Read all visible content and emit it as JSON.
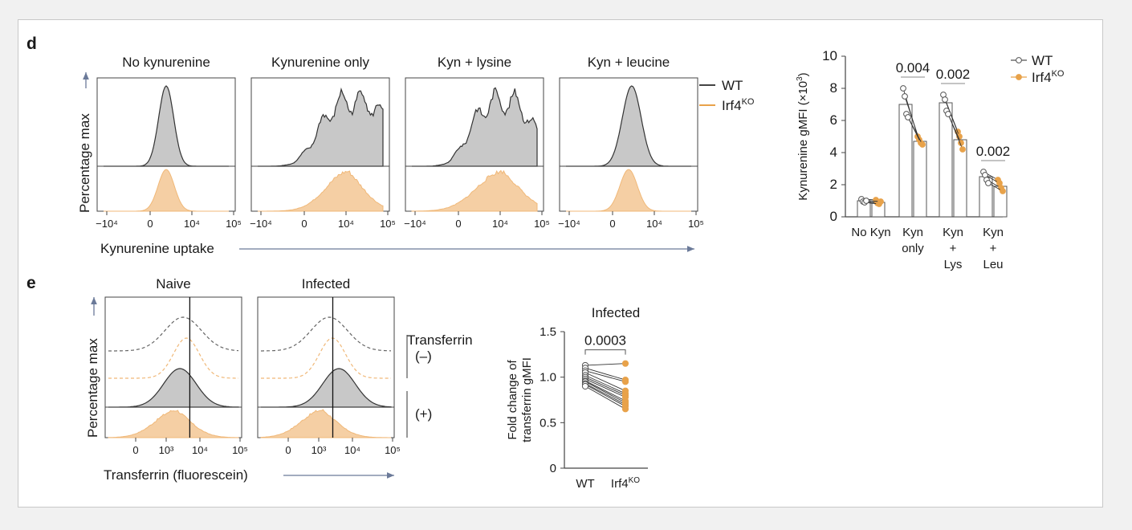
{
  "colors": {
    "wt": "#555555",
    "ko": "#e8a24a",
    "wt_fill": "#c8c8c8",
    "ko_fill": "#f5cfa4",
    "axis": "#6b7a99"
  },
  "panel_d": {
    "label": "d",
    "y_axis_label": "Percentage max",
    "x_axis_label": "Kynurenine uptake",
    "tick_labels": [
      "−10⁴",
      "0",
      "10⁴",
      "10⁵"
    ],
    "legend": {
      "wt": "WT",
      "ko_base": "Irf4",
      "ko_sup": "KO"
    },
    "histograms": [
      {
        "title": "No kynurenine",
        "wt": {
          "center": 0.0,
          "width": 0.12,
          "shape": "narrow"
        },
        "ko": {
          "center": 0.0,
          "width": 0.13,
          "shape": "narrow"
        }
      },
      {
        "title": "Kynurenine only",
        "wt": {
          "center": 0.55,
          "width": 0.55,
          "shape": "broad"
        },
        "ko": {
          "center": 0.45,
          "width": 0.35,
          "shape": "skew"
        }
      },
      {
        "title": "Kyn + lysine",
        "wt": {
          "center": 0.45,
          "width": 0.5,
          "shape": "broad"
        },
        "ko": {
          "center": 0.45,
          "width": 0.4,
          "shape": "skew"
        }
      },
      {
        "title": "Kyn + leucine",
        "wt": {
          "center": 0.05,
          "width": 0.15,
          "shape": "narrow"
        },
        "ko": {
          "center": 0.0,
          "width": 0.14,
          "shape": "narrow"
        }
      }
    ]
  },
  "chart_data": [
    {
      "type": "bar",
      "ylabel_base": "Kynurenine gMFI (×10",
      "ylabel_sup": "3",
      "ylabel_tail": ")",
      "ylim": [
        0,
        10
      ],
      "yticks": [
        0,
        2,
        4,
        6,
        8,
        10
      ],
      "groups": [
        {
          "label_lines": [
            "No Kyn"
          ],
          "wt": 1.0,
          "ko": 0.9,
          "wt_pts": [
            1.1,
            0.95,
            0.9,
            1.0
          ],
          "ko_pts": [
            1.05,
            0.85,
            0.8,
            0.95
          ],
          "p": ""
        },
        {
          "label_lines": [
            "Kyn",
            "only"
          ],
          "wt": 7.0,
          "ko": 4.7,
          "wt_pts": [
            8.0,
            7.5,
            6.4,
            6.2
          ],
          "ko_pts": [
            5.0,
            4.8,
            4.6,
            4.5
          ],
          "p": "0.004"
        },
        {
          "label_lines": [
            "Kyn",
            "+",
            "Lys"
          ],
          "wt": 7.1,
          "ko": 4.8,
          "wt_pts": [
            7.6,
            7.3,
            6.6,
            6.4
          ],
          "ko_pts": [
            5.3,
            5.0,
            4.6,
            4.2
          ],
          "p": "0.002"
        },
        {
          "label_lines": [
            "Kyn",
            "+",
            "Leu"
          ],
          "wt": 2.5,
          "ko": 1.9,
          "wt_pts": [
            2.8,
            2.6,
            2.3,
            2.1
          ],
          "ko_pts": [
            2.3,
            2.1,
            1.8,
            1.6
          ],
          "p": "0.002"
        }
      ],
      "legend": {
        "wt": "WT",
        "ko_base": "Irf4",
        "ko_sup": "KO"
      }
    },
    {
      "type": "scatter",
      "title": "Infected",
      "ylabel_lines": [
        "Fold change of",
        "transferrin gMFI"
      ],
      "ylim": [
        0,
        1.5
      ],
      "yticks": [
        0,
        0.5,
        1.0,
        1.5
      ],
      "ytick_labels": [
        "0",
        "0.5",
        "1.0",
        "1.5"
      ],
      "categories": [
        "WT",
        "Irf4"
      ],
      "ko_sup": "KO",
      "p": "0.0003",
      "wt_values": [
        1.13,
        1.1,
        1.07,
        1.05,
        1.02,
        1.0,
        0.98,
        0.96,
        0.95,
        0.93,
        0.92,
        0.9
      ],
      "ko_values": [
        1.15,
        0.97,
        0.95,
        0.85,
        0.82,
        0.8,
        0.78,
        0.74,
        0.72,
        0.7,
        0.68,
        0.65
      ]
    }
  ],
  "panel_e": {
    "label": "e",
    "y_axis_label": "Percentage max",
    "x_axis_label": "Transferrin (fluorescein)",
    "tick_labels": [
      "0",
      "10³",
      "10⁴",
      "10⁵"
    ],
    "bracket_title": "Transferrin",
    "minus_label": "(–)",
    "plus_label": "(+)",
    "histograms": [
      {
        "title": "Naive",
        "vline": 0.62
      },
      {
        "title": "Infected",
        "vline": 0.55
      }
    ]
  }
}
